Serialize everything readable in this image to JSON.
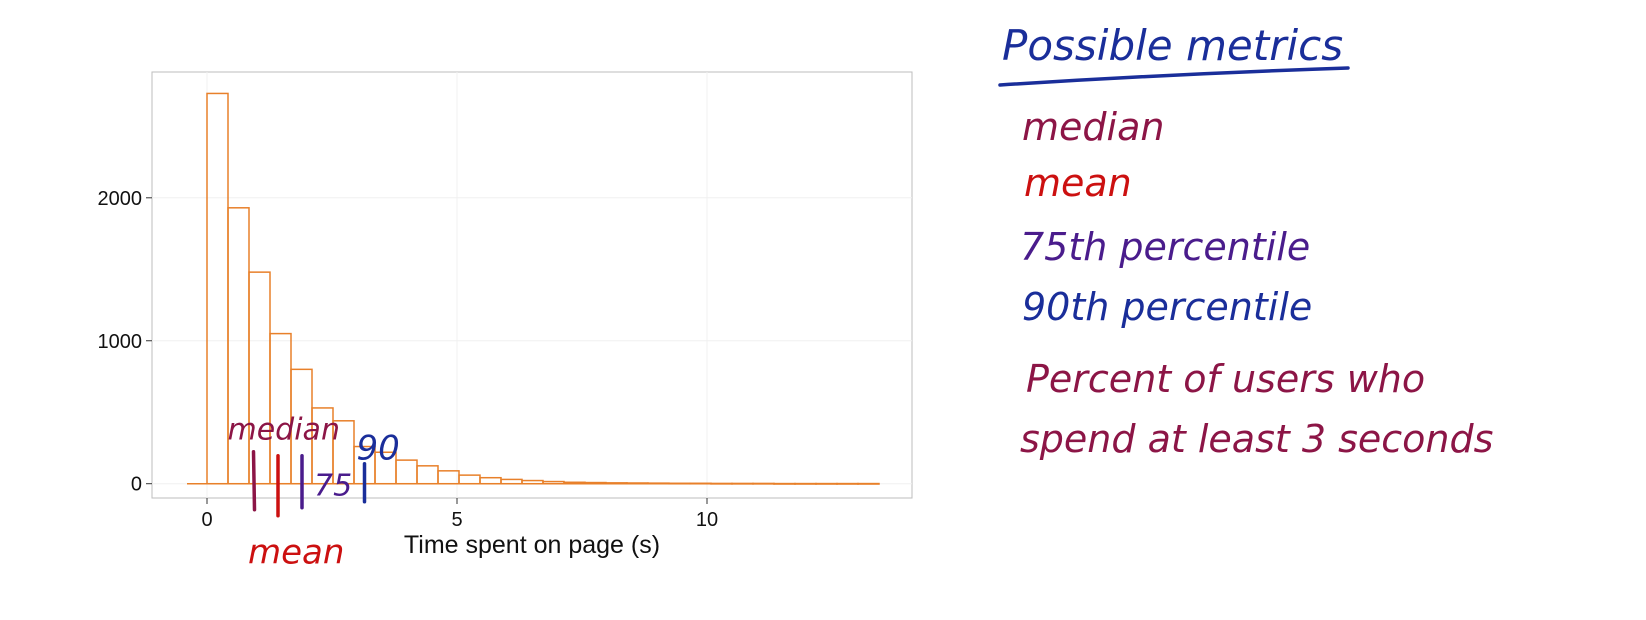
{
  "chart_data": {
    "type": "bar",
    "xlabel": "Time spent on page (s)",
    "ylabel": "",
    "xticks": [
      0,
      5,
      10
    ],
    "yticks": [
      0,
      1000,
      2000
    ],
    "xlim": [
      -1.1,
      14.1
    ],
    "ylim": [
      -100,
      2880
    ],
    "grid": true,
    "bin_width": 0.42,
    "bins": [
      {
        "x0": 0.0,
        "count": 2730
      },
      {
        "x0": 0.42,
        "count": 1930
      },
      {
        "x0": 0.84,
        "count": 1480
      },
      {
        "x0": 1.26,
        "count": 1050
      },
      {
        "x0": 1.68,
        "count": 800
      },
      {
        "x0": 2.1,
        "count": 530
      },
      {
        "x0": 2.52,
        "count": 440
      },
      {
        "x0": 2.94,
        "count": 260
      },
      {
        "x0": 3.36,
        "count": 220
      },
      {
        "x0": 3.78,
        "count": 165
      },
      {
        "x0": 4.2,
        "count": 125
      },
      {
        "x0": 4.62,
        "count": 90
      },
      {
        "x0": 5.04,
        "count": 60
      },
      {
        "x0": 5.46,
        "count": 42
      },
      {
        "x0": 5.88,
        "count": 30
      },
      {
        "x0": 6.3,
        "count": 22
      },
      {
        "x0": 6.72,
        "count": 15
      },
      {
        "x0": 7.14,
        "count": 10
      },
      {
        "x0": 7.56,
        "count": 8
      },
      {
        "x0": 7.98,
        "count": 6
      },
      {
        "x0": 8.4,
        "count": 5
      },
      {
        "x0": 8.82,
        "count": 4
      },
      {
        "x0": 9.24,
        "count": 3
      },
      {
        "x0": 9.66,
        "count": 3
      },
      {
        "x0": 10.08,
        "count": 2
      },
      {
        "x0": 10.5,
        "count": 2
      },
      {
        "x0": 10.92,
        "count": 2
      },
      {
        "x0": 11.34,
        "count": 1
      },
      {
        "x0": 11.76,
        "count": 1
      },
      {
        "x0": 12.18,
        "count": 1
      },
      {
        "x0": 12.6,
        "count": 1
      },
      {
        "x0": 13.02,
        "count": 1
      }
    ],
    "baseline_range": [
      -0.4,
      13.44
    ],
    "bar_color": "#e8802a",
    "annotations": {
      "median": {
        "x": 0.93,
        "label": "median",
        "color": "#8c1546"
      },
      "mean": {
        "x": 1.42,
        "label": "mean",
        "color": "#cc1010"
      },
      "p75": {
        "x": 1.9,
        "label": "75",
        "color": "#4a1c8c"
      },
      "p90": {
        "x": 3.15,
        "label": "90",
        "color": "#1a2e9a"
      }
    }
  },
  "notes": {
    "title": "Possible metrics",
    "title_color": "#1a2e9a",
    "items": [
      {
        "text": "median",
        "color": "#8c1546"
      },
      {
        "text": "mean",
        "color": "#cc1010"
      },
      {
        "text": "75th percentile",
        "color": "#4a1c8c"
      },
      {
        "text": "90th percentile",
        "color": "#1a2e9a"
      },
      {
        "text": "Percent of users who",
        "color": "#8c1546"
      },
      {
        "text": "spend at least 3 seconds",
        "color": "#8c1546"
      }
    ]
  }
}
